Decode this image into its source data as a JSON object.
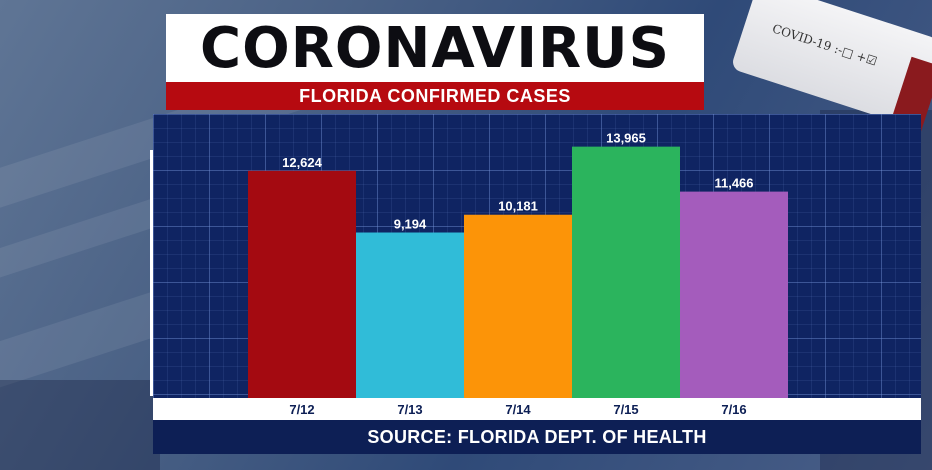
{
  "header": {
    "title": "CORONAVIRUS",
    "subtitle": "FLORIDA CONFIRMED CASES"
  },
  "vial": {
    "label": "COVID-19 :-□ +☑"
  },
  "source": "SOURCE: FLORIDA DEPT. OF HEALTH",
  "colors": {
    "title_bg": "#ffffff",
    "subtitle_bg": "#b60a10",
    "panel_bg": "#0f2462",
    "bar_colors": [
      "#a40a11",
      "#30bcd8",
      "#fc9408",
      "#2bb45d",
      "#a45cbc"
    ]
  },
  "chart_data": {
    "type": "bar",
    "title": "FLORIDA CONFIRMED CASES",
    "categories": [
      "7/12",
      "7/13",
      "7/14",
      "7/15",
      "7/16"
    ],
    "values": [
      12624,
      9194,
      10181,
      13965,
      11466
    ],
    "value_labels": [
      "12,624",
      "9,194",
      "10,181",
      "13,965",
      "11,466"
    ],
    "ylim": [
      0,
      15000
    ],
    "xlabel": "",
    "ylabel": "",
    "grid": true,
    "legend": "none"
  }
}
